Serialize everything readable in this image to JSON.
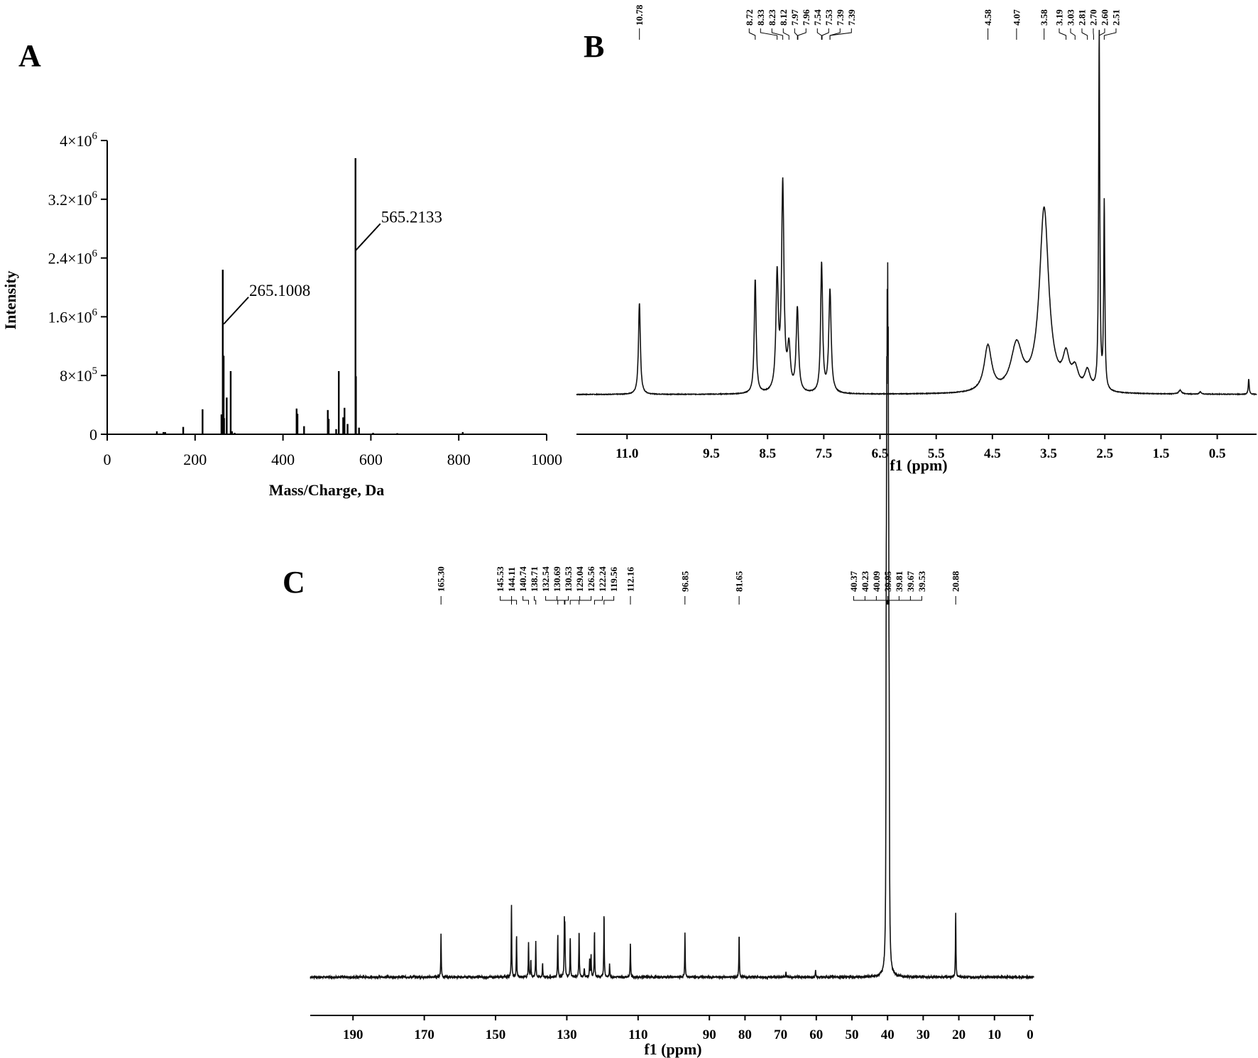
{
  "panels": {
    "a": {
      "label": "A",
      "chart_data": {
        "type": "bar",
        "xlabel": "Mass/Charge, Da",
        "ylabel": "Intensity",
        "xlim": [
          0,
          1000
        ],
        "ylim": [
          0,
          4000000
        ],
        "xticks": [
          0,
          200,
          400,
          600,
          800,
          1000
        ],
        "xtick_labels": [
          "0",
          "200",
          "400",
          "600",
          "800",
          "1000"
        ],
        "yticks": [
          0,
          800000,
          1600000,
          2400000,
          3200000,
          4000000
        ],
        "ytick_labels": [
          {
            "mant": "0",
            "exp": ""
          },
          {
            "mant": "8×10",
            "exp": "5"
          },
          {
            "mant": "1.6×10",
            "exp": "6"
          },
          {
            "mant": "2.4×10",
            "exp": "6"
          },
          {
            "mant": "3.2×10",
            "exp": "6"
          },
          {
            "mant": "4×10",
            "exp": "6"
          }
        ],
        "x": [
          113,
          128,
          132,
          173,
          217,
          260,
          263,
          265,
          266,
          272,
          281,
          284,
          290,
          431,
          433,
          448,
          502,
          504,
          521,
          527,
          537,
          540,
          547,
          565,
          566,
          573,
          605,
          660,
          809
        ],
        "values": [
          40000,
          30000,
          30000,
          100000,
          340000,
          270000,
          2240000,
          1070000,
          220000,
          500000,
          860000,
          40000,
          20000,
          350000,
          280000,
          110000,
          330000,
          210000,
          70000,
          860000,
          230000,
          360000,
          140000,
          3760000,
          790000,
          90000,
          20000,
          15000,
          30000
        ],
        "annotations": [
          {
            "x": 265,
            "y": 1500000,
            "text": "265.1008"
          },
          {
            "x": 565,
            "y": 2500000,
            "text": "565.2133"
          }
        ]
      }
    },
    "b": {
      "label": "B",
      "chart_data": {
        "type": "line",
        "xlabel": "f1 (ppm)",
        "xlim": [
          11.9,
          -0.2
        ],
        "xticks": [
          11.0,
          9.5,
          8.5,
          7.5,
          6.5,
          5.5,
          4.5,
          3.5,
          2.5,
          1.5,
          0.5
        ],
        "xtick_labels": [
          "11.0",
          "9.5",
          "8.5",
          "7.5",
          "6.5",
          "5.5",
          "4.5",
          "3.5",
          "2.5",
          "1.5",
          "0.5"
        ],
        "ylim": [
          0,
          100
        ],
        "baseline": 5.5,
        "peaks": [
          {
            "ppm": 10.78,
            "height": 24,
            "width": 0.02
          },
          {
            "ppm": 8.72,
            "height": 30,
            "width": 0.02
          },
          {
            "ppm": 8.33,
            "height": 30,
            "width": 0.025
          },
          {
            "ppm": 8.23,
            "height": 54,
            "width": 0.025
          },
          {
            "ppm": 8.12,
            "height": 11,
            "width": 0.03
          },
          {
            "ppm": 7.97,
            "height": 22,
            "width": 0.025
          },
          {
            "ppm": 7.54,
            "height": 29,
            "width": 0.02
          },
          {
            "ppm": 7.53,
            "height": 6,
            "width": 0.02
          },
          {
            "ppm": 7.39,
            "height": 27,
            "width": 0.025
          },
          {
            "ppm": 4.58,
            "height": 12,
            "width": 0.08
          },
          {
            "ppm": 4.07,
            "height": 12,
            "width": 0.12
          },
          {
            "ppm": 3.58,
            "height": 48,
            "width": 0.1
          },
          {
            "ppm": 3.19,
            "height": 8,
            "width": 0.07
          },
          {
            "ppm": 3.03,
            "height": 5,
            "width": 0.07
          },
          {
            "ppm": 2.81,
            "height": 5,
            "width": 0.06
          },
          {
            "ppm": 2.6,
            "height": 94,
            "width": 0.012
          },
          {
            "ppm": 2.51,
            "height": 49,
            "width": 0.012
          },
          {
            "ppm": 1.16,
            "height": 1,
            "width": 0.03
          },
          {
            "ppm": 0.8,
            "height": 0.6,
            "width": 0.02
          },
          {
            "ppm": -0.06,
            "height": 4,
            "width": 0.01
          }
        ],
        "peak_labels": [
          "10.78",
          "8.72",
          "8.33",
          "8.23",
          "8.12",
          "7.97",
          "7.96",
          "7.54",
          "7.53",
          "7.39",
          "7.39",
          "4.58",
          "4.07",
          "3.58",
          "3.19",
          "3.03",
          "2.81",
          "2.70",
          "2.60",
          "2.51"
        ],
        "peak_label_ppm": [
          10.78,
          8.72,
          8.33,
          8.23,
          8.12,
          7.97,
          7.96,
          7.54,
          7.53,
          7.39,
          7.39,
          4.58,
          4.07,
          3.58,
          3.19,
          3.03,
          2.81,
          2.7,
          2.6,
          2.51
        ]
      }
    },
    "c": {
      "label": "C",
      "chart_data": {
        "type": "line",
        "xlabel": "f1 (ppm)",
        "xlim": [
          202,
          -1
        ],
        "xticks": [
          190,
          170,
          150,
          130,
          110,
          90,
          80,
          70,
          60,
          50,
          40,
          30,
          20,
          10,
          0
        ],
        "xtick_labels": [
          "190",
          "170",
          "150",
          "130",
          "110",
          "90",
          "80",
          "70",
          "60",
          "50",
          "40",
          "30",
          "20",
          "10",
          "0"
        ],
        "ylim": [
          0,
          100
        ],
        "baseline": 4,
        "peaks": [
          {
            "ppm": 165.3,
            "height": 10
          },
          {
            "ppm": 145.53,
            "height": 17
          },
          {
            "ppm": 144.11,
            "height": 9.5
          },
          {
            "ppm": 140.74,
            "height": 8
          },
          {
            "ppm": 140.1,
            "height": 4
          },
          {
            "ppm": 138.71,
            "height": 8
          },
          {
            "ppm": 136.8,
            "height": 3
          },
          {
            "ppm": 132.54,
            "height": 10
          },
          {
            "ppm": 130.69,
            "height": 12
          },
          {
            "ppm": 130.53,
            "height": 10
          },
          {
            "ppm": 129.04,
            "height": 9.5
          },
          {
            "ppm": 126.56,
            "height": 11
          },
          {
            "ppm": 125.1,
            "height": 2
          },
          {
            "ppm": 123.6,
            "height": 4
          },
          {
            "ppm": 123.2,
            "height": 5
          },
          {
            "ppm": 122.24,
            "height": 11
          },
          {
            "ppm": 119.56,
            "height": 15
          },
          {
            "ppm": 118.0,
            "height": 3
          },
          {
            "ppm": 112.16,
            "height": 8
          },
          {
            "ppm": 96.85,
            "height": 10
          },
          {
            "ppm": 81.65,
            "height": 10
          },
          {
            "ppm": 68.5,
            "height": 1
          },
          {
            "ppm": 60.2,
            "height": 1.5
          },
          {
            "ppm": 40.37,
            "height": 60
          },
          {
            "ppm": 40.23,
            "height": 90
          },
          {
            "ppm": 40.09,
            "height": 100
          },
          {
            "ppm": 39.95,
            "height": 100
          },
          {
            "ppm": 39.81,
            "height": 95
          },
          {
            "ppm": 39.67,
            "height": 65
          },
          {
            "ppm": 39.53,
            "height": 35
          },
          {
            "ppm": 20.88,
            "height": 15
          }
        ],
        "peak_labels": [
          "165.30",
          "145.53",
          "144.11",
          "140.74",
          "138.71",
          "132.54",
          "130.69",
          "130.53",
          "129.04",
          "126.56",
          "122.24",
          "119.56",
          "112.16",
          "96.85",
          "81.65",
          "40.37",
          "40.23",
          "40.09",
          "39.95",
          "39.81",
          "39.67",
          "39.53",
          "20.88"
        ],
        "peak_label_ppm": [
          165.3,
          145.53,
          144.11,
          140.74,
          138.71,
          132.54,
          130.69,
          130.53,
          129.04,
          126.56,
          122.24,
          119.56,
          112.16,
          96.85,
          81.65,
          40.37,
          40.23,
          40.09,
          39.95,
          39.81,
          39.67,
          39.53,
          20.88
        ]
      }
    }
  }
}
